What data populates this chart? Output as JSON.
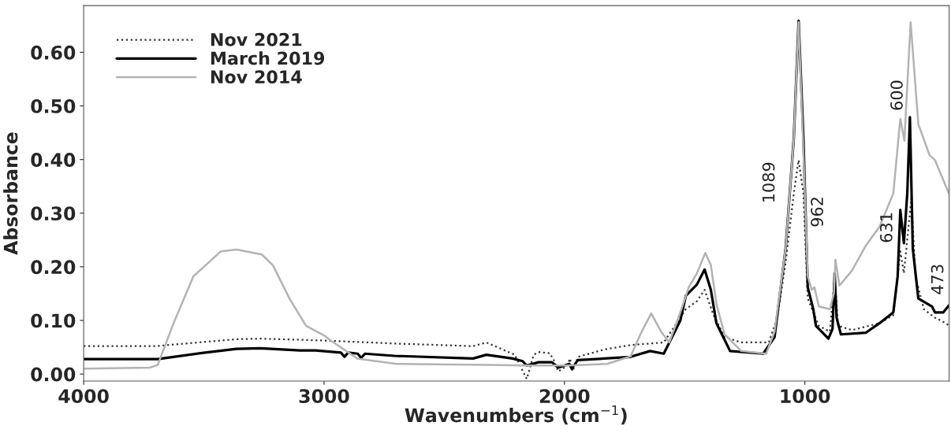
{
  "chart_data": {
    "type": "line",
    "xlabel": "Wavenumbers (cm$^{−1}$)",
    "ylabel": "Absorbance",
    "xlim": [
      4000,
      400
    ],
    "xticks": [
      4000,
      3000,
      2000,
      1000
    ],
    "ylim": [
      -0.013,
      0.687
    ],
    "yticks": [
      {
        "value": 0,
        "label": "0.00"
      },
      {
        "value": 0.1,
        "label": "0.10"
      },
      {
        "value": 0.2,
        "label": "0.20"
      },
      {
        "value": 0.3,
        "label": "0.30"
      },
      {
        "value": 0.4,
        "label": "0.40"
      },
      {
        "value": 0.5,
        "label": "0.50"
      },
      {
        "value": 0.6,
        "label": "0.60"
      }
    ],
    "grid": false,
    "legend": "top left",
    "series": [
      {
        "name": "Nov 2021",
        "color": "#333333",
        "line_style": "dotted",
        "x": [
          4000,
          3700,
          3500,
          3364,
          3266,
          3100,
          2970,
          2708,
          2380,
          2325,
          2207,
          2157,
          2128,
          2108,
          2062,
          2045,
          2026,
          1990,
          1977,
          1966,
          1944,
          1833,
          1725,
          1587,
          1495,
          1449,
          1417,
          1380,
          1334,
          1265,
          1150,
          1115,
          1080,
          1046,
          1026,
          1006,
          988,
          942,
          896,
          876,
          862,
          804,
          689,
          632,
          603,
          588,
          557,
          540,
          505,
          459,
          413,
          401
        ],
        "values": [
          0.052,
          0.052,
          0.06,
          0.065,
          0.066,
          0.064,
          0.062,
          0.057,
          0.052,
          0.059,
          0.036,
          -0.009,
          0.036,
          0.041,
          0.039,
          0.027,
          0.005,
          0.015,
          0.029,
          0.005,
          0.032,
          0.046,
          0.054,
          0.059,
          0.121,
          0.136,
          0.157,
          0.11,
          0.069,
          0.059,
          0.059,
          0.105,
          0.208,
          0.337,
          0.399,
          0.337,
          0.141,
          0.09,
          0.079,
          0.182,
          0.09,
          0.082,
          0.095,
          0.11,
          0.229,
          0.188,
          0.327,
          0.182,
          0.121,
          0.105,
          0.095,
          0.09
        ]
      },
      {
        "name": "March 2019",
        "color": "#000000",
        "line_style": "solid",
        "x": [
          4000,
          3692,
          3495,
          3364,
          3266,
          3100,
          3036,
          2930,
          2915,
          2900,
          2860,
          2846,
          2830,
          2708,
          2380,
          2325,
          2216,
          2174,
          2157,
          2108,
          2052,
          2026,
          1980,
          1970,
          1944,
          1725,
          1644,
          1587,
          1518,
          1495,
          1449,
          1417,
          1391,
          1368,
          1311,
          1173,
          1126,
          1080,
          1046,
          1026,
          1006,
          988,
          965,
          954,
          902,
          885,
          876,
          868,
          850,
          747,
          689,
          632,
          614,
          603,
          588,
          574,
          563,
          551,
          528,
          471,
          459,
          424,
          401
        ],
        "values": [
          0.028,
          0.028,
          0.04,
          0.047,
          0.048,
          0.044,
          0.044,
          0.04,
          0.032,
          0.04,
          0.038,
          0.03,
          0.038,
          0.034,
          0.029,
          0.036,
          0.029,
          0.024,
          0.016,
          0.022,
          0.022,
          0.012,
          0.019,
          0.01,
          0.026,
          0.032,
          0.043,
          0.038,
          0.1,
          0.146,
          0.167,
          0.195,
          0.157,
          0.095,
          0.043,
          0.038,
          0.069,
          0.234,
          0.44,
          0.659,
          0.44,
          0.162,
          0.121,
          0.09,
          0.066,
          0.084,
          0.188,
          0.105,
          0.074,
          0.077,
          0.095,
          0.115,
          0.182,
          0.306,
          0.244,
          0.337,
          0.479,
          0.234,
          0.141,
          0.126,
          0.115,
          0.115,
          0.128
        ]
      },
      {
        "name": "Nov 2014",
        "color": "#b3b3b3",
        "line_style": "solid",
        "x": [
          4000,
          3725,
          3692,
          3626,
          3544,
          3429,
          3364,
          3259,
          3213,
          3144,
          3075,
          3000,
          2970,
          2862,
          2698,
          2478,
          2314,
          2150,
          1986,
          1822,
          1747,
          1725,
          1679,
          1639,
          1598,
          1564,
          1518,
          1483,
          1449,
          1414,
          1391,
          1368,
          1334,
          1265,
          1161,
          1126,
          1080,
          1046,
          1026,
          1006,
          988,
          971,
          960,
          942,
          896,
          879,
          873,
          856,
          804,
          747,
          689,
          632,
          603,
          586,
          560,
          528,
          482,
          459,
          401
        ],
        "values": [
          0.01,
          0.012,
          0.017,
          0.095,
          0.182,
          0.229,
          0.232,
          0.223,
          0.203,
          0.141,
          0.09,
          0.072,
          0.062,
          0.029,
          0.019,
          0.018,
          0.017,
          0.016,
          0.016,
          0.019,
          0.03,
          0.033,
          0.079,
          0.113,
          0.079,
          0.059,
          0.115,
          0.162,
          0.188,
          0.226,
          0.203,
          0.131,
          0.074,
          0.043,
          0.038,
          0.079,
          0.234,
          0.44,
          0.656,
          0.414,
          0.182,
          0.157,
          0.162,
          0.126,
          0.121,
          0.151,
          0.213,
          0.165,
          0.193,
          0.239,
          0.275,
          0.337,
          0.476,
          0.435,
          0.656,
          0.466,
          0.409,
          0.399,
          0.337
        ]
      }
    ],
    "annotations": [
      "1089",
      "962",
      "631",
      "600",
      "473"
    ]
  }
}
